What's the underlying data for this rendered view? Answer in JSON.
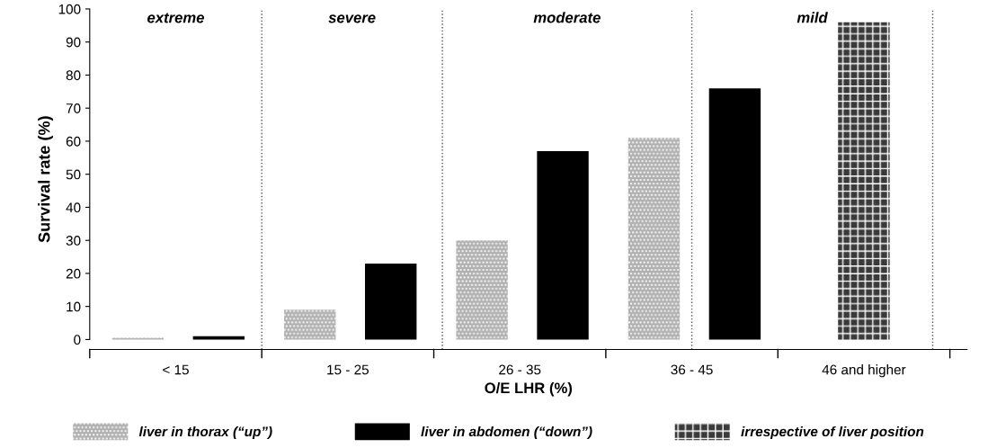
{
  "chart_data": {
    "type": "bar",
    "xlabel": "O/E LHR (%)",
    "ylabel": "Survival rate (%)",
    "categories": [
      "< 15",
      "15 - 25",
      "26 - 35",
      "36 - 45",
      "46 and higher"
    ],
    "series": [
      {
        "name": "liver in thorax (“up”)",
        "color": "#b0b0b0",
        "values": [
          0.5,
          9,
          30,
          61,
          null
        ]
      },
      {
        "name": "liver in abdomen (“down”)",
        "color": "#000000",
        "values": [
          1,
          23,
          57,
          76,
          null
        ]
      },
      {
        "name": "irrespective of liver position",
        "color": "#3a3a3a",
        "values": [
          null,
          null,
          null,
          null,
          96
        ]
      }
    ],
    "ylim": [
      -3,
      100
    ],
    "yticks": [
      0,
      10,
      20,
      30,
      40,
      50,
      60,
      70,
      80,
      90,
      100
    ],
    "annotations": [
      "extreme",
      "severe",
      "moderate",
      "mild"
    ],
    "legend": "bottom"
  }
}
